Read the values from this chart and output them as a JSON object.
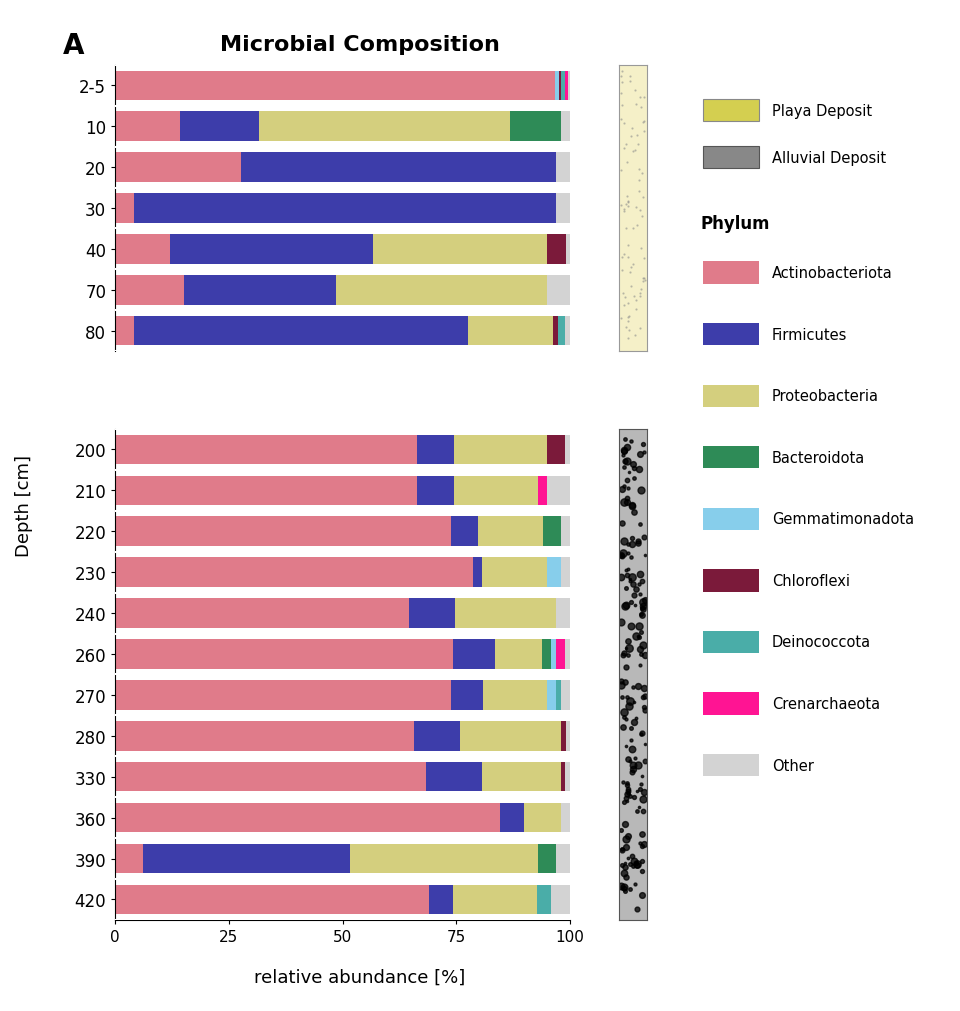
{
  "title": "Microbial Composition",
  "panel_label": "A",
  "xlabel": "relative abundance [%]",
  "ylabel": "Depth [cm]",
  "colors": {
    "Actinobacteriota": "#E07B8A",
    "Firmicutes": "#3D3DAA",
    "Proteobacteria": "#D4CF7E",
    "Bacteroidota": "#2E8B57",
    "Gemmatimonadota": "#87CEEB",
    "Chloroflexi": "#7B1A3A",
    "Deinococcota": "#4AADA8",
    "Crenarchaeota": "#FF1493",
    "Other": "#D3D3D3"
  },
  "phyla_order": [
    "Actinobacteriota",
    "Firmicutes",
    "Proteobacteria",
    "Bacteroidota",
    "Gemmatimonadota",
    "Chloroflexi",
    "Deinococcota",
    "Crenarchaeota",
    "Other"
  ],
  "depths_top": [
    "2-5",
    "10",
    "20",
    "30",
    "40",
    "70",
    "80"
  ],
  "data_top": {
    "2-5": {
      "Actinobacteriota": 92,
      "Firmicutes": 0,
      "Proteobacteria": 0,
      "Bacteroidota": 0,
      "Gemmatimonadota": 0.8,
      "Chloroflexi": 0.5,
      "Deinococcota": 0.8,
      "Crenarchaeota": 0.5,
      "Other": 0.5
    },
    "10": {
      "Actinobacteriota": 14,
      "Firmicutes": 17,
      "Proteobacteria": 54,
      "Bacteroidota": 11,
      "Gemmatimonadota": 0,
      "Chloroflexi": 0,
      "Deinococcota": 0,
      "Crenarchaeota": 0,
      "Other": 2
    },
    "20": {
      "Actinobacteriota": 27,
      "Firmicutes": 68,
      "Proteobacteria": 0,
      "Bacteroidota": 0,
      "Gemmatimonadota": 0,
      "Chloroflexi": 0,
      "Deinococcota": 0,
      "Crenarchaeota": 0,
      "Other": 3
    },
    "30": {
      "Actinobacteriota": 4,
      "Firmicutes": 90,
      "Proteobacteria": 0,
      "Bacteroidota": 0,
      "Gemmatimonadota": 0,
      "Chloroflexi": 0,
      "Deinococcota": 0,
      "Crenarchaeota": 0,
      "Other": 3
    },
    "40": {
      "Actinobacteriota": 12,
      "Firmicutes": 44,
      "Proteobacteria": 38,
      "Bacteroidota": 0,
      "Gemmatimonadota": 0,
      "Chloroflexi": 4,
      "Deinococcota": 0,
      "Crenarchaeota": 0,
      "Other": 1
    },
    "70": {
      "Actinobacteriota": 15,
      "Firmicutes": 33,
      "Proteobacteria": 46,
      "Bacteroidota": 0,
      "Gemmatimonadota": 0,
      "Chloroflexi": 0,
      "Deinococcota": 0,
      "Crenarchaeota": 0,
      "Other": 5
    },
    "80": {
      "Actinobacteriota": 4,
      "Firmicutes": 70,
      "Proteobacteria": 18,
      "Bacteroidota": 0,
      "Gemmatimonadota": 0,
      "Chloroflexi": 1,
      "Deinococcota": 1.5,
      "Crenarchaeota": 0,
      "Other": 1
    }
  },
  "depths_bottom": [
    "200",
    "210",
    "220",
    "230",
    "240",
    "260",
    "270",
    "280",
    "330",
    "360",
    "390",
    "420"
  ],
  "data_bottom": {
    "200": {
      "Actinobacteriota": 65,
      "Firmicutes": 8,
      "Proteobacteria": 20,
      "Bacteroidota": 0,
      "Gemmatimonadota": 0,
      "Chloroflexi": 4,
      "Deinococcota": 0,
      "Crenarchaeota": 0,
      "Other": 1
    },
    "210": {
      "Actinobacteriota": 65,
      "Firmicutes": 8,
      "Proteobacteria": 18,
      "Bacteroidota": 0,
      "Gemmatimonadota": 0,
      "Chloroflexi": 0,
      "Deinococcota": 0,
      "Crenarchaeota": 2,
      "Other": 5
    },
    "220": {
      "Actinobacteriota": 73,
      "Firmicutes": 6,
      "Proteobacteria": 14,
      "Bacteroidota": 4,
      "Gemmatimonadota": 0,
      "Chloroflexi": 0,
      "Deinococcota": 0,
      "Crenarchaeota": 0,
      "Other": 2
    },
    "230": {
      "Actinobacteriota": 77,
      "Firmicutes": 2,
      "Proteobacteria": 14,
      "Bacteroidota": 0,
      "Gemmatimonadota": 3,
      "Chloroflexi": 0,
      "Deinococcota": 0,
      "Crenarchaeota": 0,
      "Other": 2
    },
    "240": {
      "Actinobacteriota": 64,
      "Firmicutes": 10,
      "Proteobacteria": 22,
      "Bacteroidota": 0,
      "Gemmatimonadota": 0,
      "Chloroflexi": 0,
      "Deinococcota": 0,
      "Crenarchaeota": 0,
      "Other": 3
    },
    "260": {
      "Actinobacteriota": 72,
      "Firmicutes": 9,
      "Proteobacteria": 10,
      "Bacteroidota": 2,
      "Gemmatimonadota": 1,
      "Chloroflexi": 0,
      "Deinococcota": 0,
      "Crenarchaeota": 2,
      "Other": 1
    },
    "270": {
      "Actinobacteriota": 73,
      "Firmicutes": 7,
      "Proteobacteria": 14,
      "Bacteroidota": 0,
      "Gemmatimonadota": 2,
      "Chloroflexi": 0,
      "Deinococcota": 1,
      "Crenarchaeota": 0,
      "Other": 2
    },
    "280": {
      "Actinobacteriota": 65,
      "Firmicutes": 10,
      "Proteobacteria": 22,
      "Bacteroidota": 0,
      "Gemmatimonadota": 0,
      "Chloroflexi": 1,
      "Deinococcota": 0,
      "Crenarchaeota": 0,
      "Other": 1
    },
    "330": {
      "Actinobacteriota": 67,
      "Firmicutes": 12,
      "Proteobacteria": 17,
      "Bacteroidota": 0,
      "Gemmatimonadota": 0,
      "Chloroflexi": 1,
      "Deinococcota": 0,
      "Crenarchaeota": 0,
      "Other": 1
    },
    "360": {
      "Actinobacteriota": 83,
      "Firmicutes": 5,
      "Proteobacteria": 8,
      "Bacteroidota": 0,
      "Gemmatimonadota": 0,
      "Chloroflexi": 0,
      "Deinococcota": 0,
      "Crenarchaeota": 0,
      "Other": 2
    },
    "390": {
      "Actinobacteriota": 6,
      "Firmicutes": 45,
      "Proteobacteria": 41,
      "Bacteroidota": 4,
      "Gemmatimonadota": 0,
      "Chloroflexi": 0,
      "Deinococcota": 0,
      "Crenarchaeota": 0,
      "Other": 3
    },
    "420": {
      "Actinobacteriota": 67,
      "Firmicutes": 5,
      "Proteobacteria": 18,
      "Bacteroidota": 0,
      "Gemmatimonadota": 0,
      "Chloroflexi": 0,
      "Deinococcota": 3,
      "Crenarchaeota": 0,
      "Other": 4
    }
  },
  "playa_color": "#F5F0C8",
  "alluvial_color": "#B8B8B8",
  "deposit_legend_playa": "#D4CF50",
  "deposit_legend_alluvial": "#888888"
}
